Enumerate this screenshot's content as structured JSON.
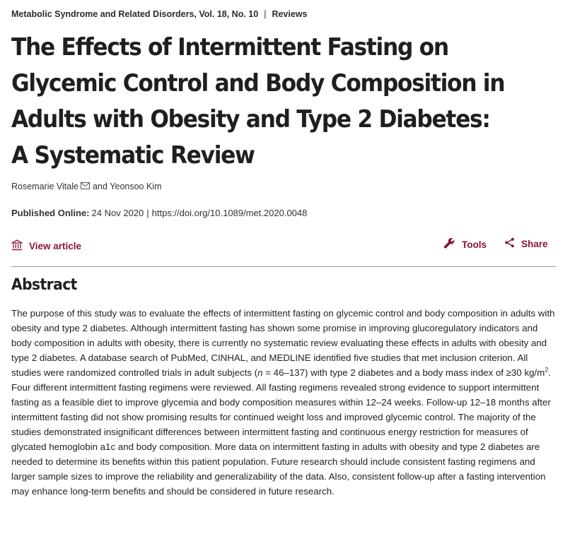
{
  "journal": {
    "name": "Metabolic Syndrome and Related Disorders,",
    "volume": "Vol. 18, No. 10",
    "separator": "|",
    "section": "Reviews"
  },
  "article": {
    "title": "The Effects of Intermittent Fasting on Glycemic Control and Body Composition in Adults with Obesity and Type 2 Diabetes: A Systematic Review",
    "authors": {
      "first": "Rosemarie Vitale",
      "mail_icon": "envelope-icon",
      "conjunction": "and",
      "second": "Yeonsoo Kim"
    },
    "published": {
      "label": "Published Online:",
      "date": "24 Nov 2020",
      "separator": "|",
      "doi": "https://doi.org/10.1089/met.2020.0048"
    }
  },
  "toolbar": {
    "view_article": "View article",
    "view_article_icon": "institution-icon",
    "tools": "Tools",
    "tools_icon": "wrench-icon",
    "share": "Share",
    "share_icon": "share-icon"
  },
  "colors": {
    "accent": "#8a1538",
    "text": "#222222",
    "rule": "#9a9a9a"
  },
  "abstract": {
    "heading": "Abstract",
    "p1": "The purpose of this study was to evaluate the effects of intermittent fasting on glycemic control and body composition in adults with obesity and type 2 diabetes. Although intermittent fasting has shown some promise in improving glucoregulatory indicators and body composition in adults with obesity, there is currently no systematic review evaluating these effects in adults with obesity and type 2 diabetes. A database search of PubMed, CINHAL, and MEDLINE identified five studies that met inclusion criterion. All studies were randomized controlled trials in adult subjects (",
    "n_symbol": "n",
    "p2": " = 46–137) with type 2 diabetes and a body mass index of ≥30 kg/m",
    "sup": "2",
    "p3": ". Four different intermittent fasting regimens were reviewed. All fasting regimens revealed strong evidence to support intermittent fasting as a feasible diet to improve glycemia and body composition measures within 12–24 weeks. Follow-up 12–18 months after intermittent fasting did not show promising results for continued weight loss and improved glycemic control. The majority of the studies demonstrated insignificant differences between intermittent fasting and continuous energy restriction for measures of glycated hemoglobin a1c and body composition. More data on intermittent fasting in adults with obesity and type 2 diabetes are needed to determine its benefits within this patient population. Future research should include consistent fasting regimens and larger sample sizes to improve the reliability and generalizability of the data. Also, consistent follow-up after a fasting intervention may enhance long-term benefits and should be considered in future research."
  }
}
